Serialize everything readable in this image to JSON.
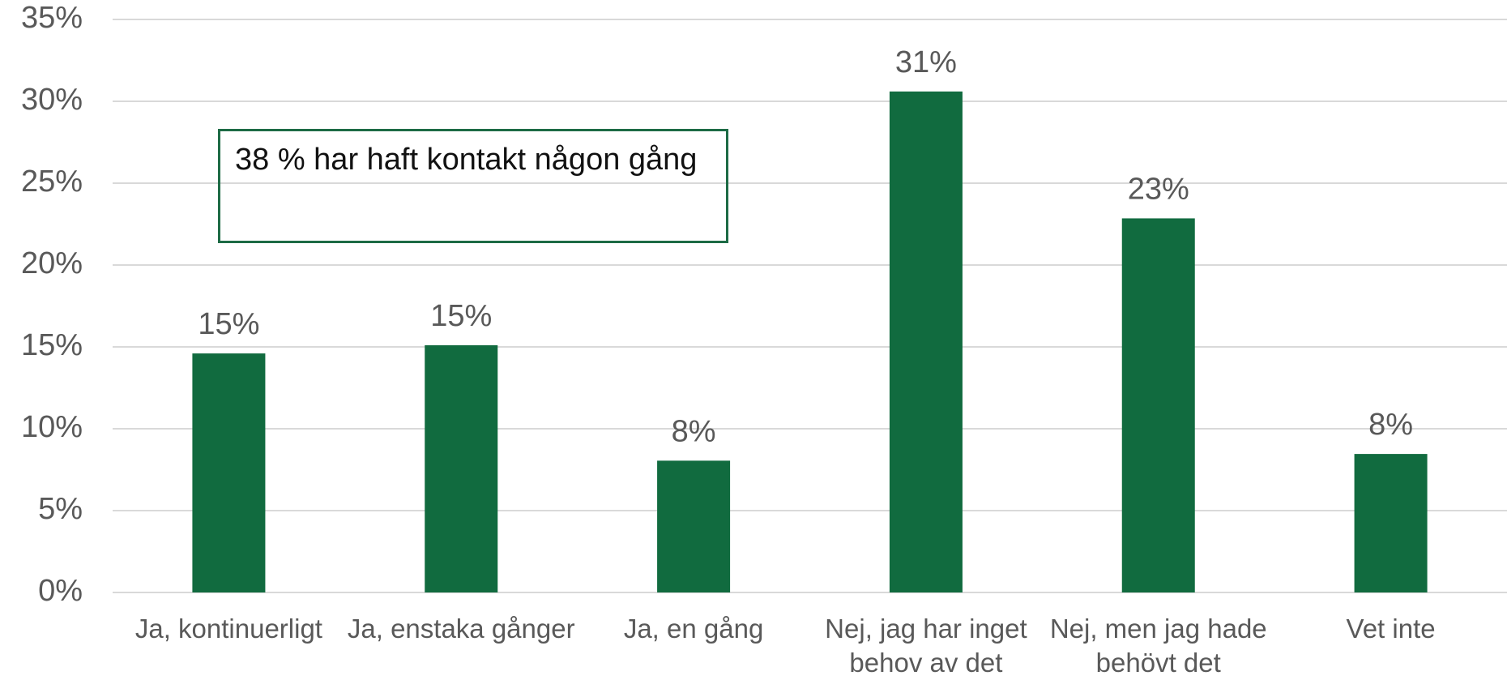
{
  "chart_data": {
    "type": "bar",
    "categories": [
      "Ja, kontinuerligt",
      "Ja, enstaka gånger",
      "Ja, en gång",
      "Nej, jag har inget behov av det",
      "Nej, men jag hade behövt det",
      "Vet inte"
    ],
    "values": [
      14.6,
      15.1,
      8.05,
      30.6,
      22.85,
      8.46
    ],
    "value_labels": [
      "15%",
      "15%",
      "8%",
      "31%",
      "23%",
      "8%"
    ],
    "color": "#116b3f",
    "ylim": [
      0,
      35
    ],
    "yticks": [
      {
        "value": 0,
        "label": "0%"
      },
      {
        "value": 5,
        "label": "5%"
      },
      {
        "value": 10,
        "label": "10%"
      },
      {
        "value": 15,
        "label": "15%"
      },
      {
        "value": 20,
        "label": "20%"
      },
      {
        "value": 25,
        "label": "25%"
      },
      {
        "value": 30,
        "label": "30%"
      },
      {
        "value": 35,
        "label": "35%"
      }
    ],
    "grid": true,
    "annotation": "38 % har haft kontakt någon gång"
  }
}
